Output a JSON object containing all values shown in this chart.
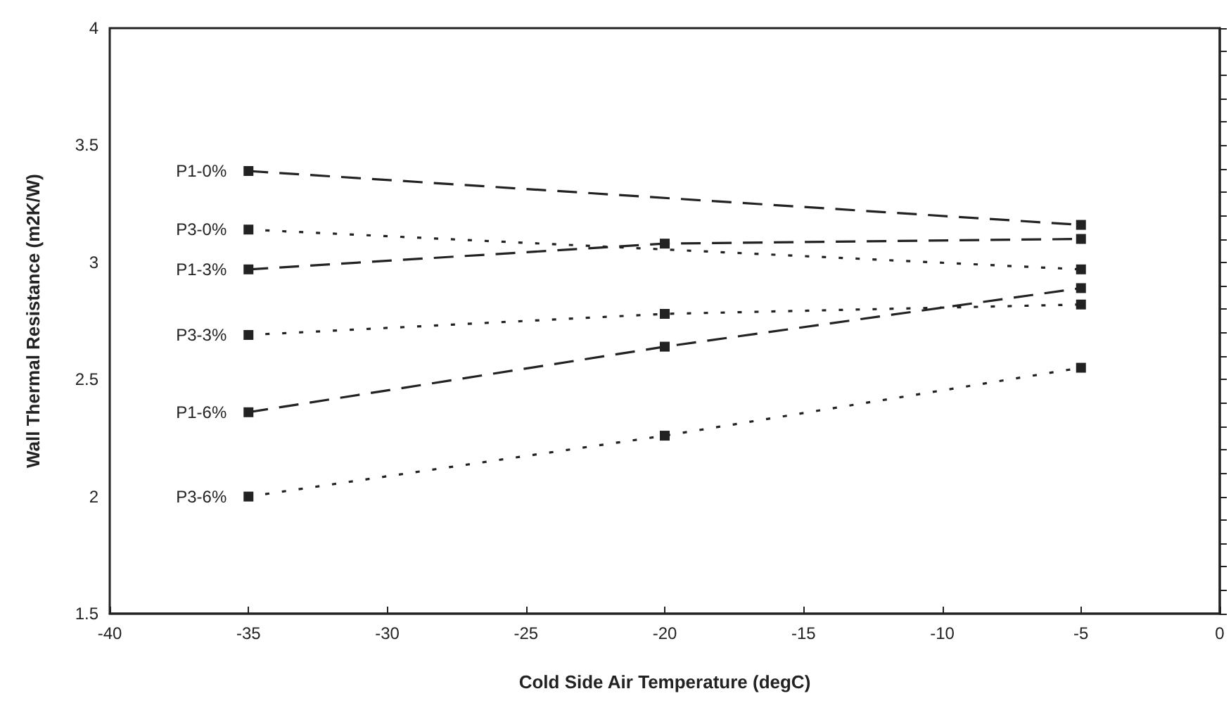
{
  "chart_data": {
    "type": "line",
    "xlabel": "Cold Side Air Temperature (degC)",
    "ylabel": "Wall Thermal Resistance (m2K/W)",
    "xlim": [
      -40,
      0
    ],
    "xticks": [
      -40,
      -35,
      -30,
      -25,
      -20,
      -15,
      -10,
      -5,
      0
    ],
    "ylim": [
      1.5,
      4
    ],
    "yticks": [
      1.5,
      {
        "value": 1.6,
        "label": null
      },
      {
        "value": 1.7,
        "label": null
      },
      {
        "value": 1.8,
        "label": null
      },
      {
        "value": 1.9,
        "label": null
      },
      2,
      {
        "value": 2.1,
        "label": null
      },
      {
        "value": 2.2,
        "label": null
      },
      {
        "value": 2.3,
        "label": null
      },
      {
        "value": 2.4,
        "label": null
      },
      2.5,
      {
        "value": 2.6,
        "label": null
      },
      {
        "value": 2.7,
        "label": null
      },
      {
        "value": 2.8,
        "label": null
      },
      {
        "value": 2.9,
        "label": null
      },
      3,
      {
        "value": 3.1,
        "label": null
      },
      {
        "value": 3.2,
        "label": null
      },
      {
        "value": 3.3,
        "label": null
      },
      {
        "value": 3.4,
        "label": null
      },
      3.5,
      {
        "value": 3.6,
        "label": null
      },
      {
        "value": 3.7,
        "label": null
      },
      {
        "value": 3.8,
        "label": null
      },
      {
        "value": 3.9,
        "label": null
      },
      4
    ],
    "grid": false,
    "legend": false,
    "marker": "square",
    "series": [
      {
        "name": "P1-0%",
        "color": "#222222",
        "line_style": "dashed",
        "x": [
          -35,
          -5
        ],
        "values": [
          3.39,
          3.16
        ]
      },
      {
        "name": "P3-0%",
        "color": "#222222",
        "line_style": "dotted",
        "x": [
          -35,
          -5
        ],
        "values": [
          3.14,
          2.97
        ]
      },
      {
        "name": "P1-3%",
        "color": "#222222",
        "line_style": "dashed",
        "x": [
          -35,
          -20,
          -5
        ],
        "values": [
          2.97,
          3.08,
          3.1
        ]
      },
      {
        "name": "P3-3%",
        "color": "#222222",
        "line_style": "dotted",
        "x": [
          -35,
          -20,
          -5
        ],
        "values": [
          2.69,
          2.78,
          2.82
        ]
      },
      {
        "name": "P1-6%",
        "color": "#222222",
        "line_style": "dashed",
        "x": [
          -35,
          -20,
          -5
        ],
        "values": [
          2.36,
          2.64,
          2.89
        ]
      },
      {
        "name": "P3-6%",
        "color": "#222222",
        "line_style": "dotted",
        "x": [
          -35,
          -20,
          -5
        ],
        "values": [
          2.0,
          2.26,
          2.55
        ]
      }
    ]
  }
}
